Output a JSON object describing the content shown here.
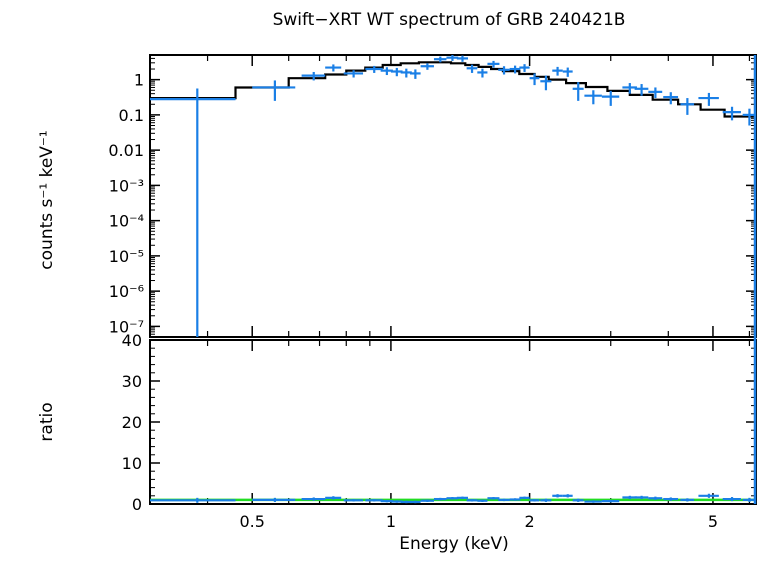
{
  "title": "Swift−XRT WT spectrum of GRB 240421B",
  "colors": {
    "data": "#1a7fe6",
    "model": "#000000",
    "unity": "#22dd22",
    "axes": "#000000"
  },
  "chart_data": [
    {
      "type": "scatter",
      "panel": "top",
      "ylabel": "counts s⁻¹ keV⁻¹",
      "xscale": "log",
      "yscale": "log",
      "xlim": [
        0.3,
        6.2
      ],
      "ylim": [
        5e-08,
        5
      ],
      "ytick_labels": [
        "1",
        "0.1",
        "0.01",
        "10⁻³",
        "10⁻⁴",
        "10⁻⁵",
        "10⁻⁶",
        "10⁻⁷"
      ],
      "ytick_values": [
        1,
        0.1,
        0.01,
        0.001,
        0.0001,
        1e-05,
        1e-06,
        1e-07
      ],
      "series": [
        {
          "kind": "data",
          "x": [
            0.38,
            0.56,
            0.68,
            0.75,
            0.83,
            0.92,
            0.98,
            1.03,
            1.08,
            1.13,
            1.2,
            1.28,
            1.36,
            1.43,
            1.5,
            1.58,
            1.67,
            1.76,
            1.86,
            1.95,
            2.05,
            2.17,
            2.3,
            2.42,
            2.55,
            2.75,
            3.0,
            3.3,
            3.5,
            3.75,
            4.05,
            4.4,
            4.9,
            5.5,
            6.0
          ],
          "xerr": [
            0.08,
            0.06,
            0.04,
            0.03,
            0.04,
            0.04,
            0.03,
            0.03,
            0.03,
            0.03,
            0.04,
            0.04,
            0.04,
            0.04,
            0.04,
            0.04,
            0.05,
            0.05,
            0.05,
            0.05,
            0.05,
            0.06,
            0.06,
            0.06,
            0.07,
            0.12,
            0.13,
            0.12,
            0.12,
            0.13,
            0.15,
            0.15,
            0.25,
            0.25,
            0.2
          ],
          "y": [
            0.28,
            0.6,
            1.3,
            2.2,
            1.5,
            2.0,
            1.8,
            1.7,
            1.6,
            1.5,
            2.4,
            3.8,
            4.2,
            4.0,
            2.1,
            1.6,
            2.8,
            1.9,
            2.0,
            2.2,
            1.1,
            0.9,
            1.8,
            1.7,
            0.55,
            0.35,
            0.33,
            0.6,
            0.55,
            0.45,
            0.32,
            0.2,
            0.3,
            0.12,
            0.1
          ],
          "yerr_low": [
            0.9999997,
            0.35,
            0.35,
            0.5,
            0.35,
            0.45,
            0.45,
            0.45,
            0.45,
            0.45,
            0.5,
            0.7,
            0.8,
            0.8,
            0.55,
            0.45,
            0.6,
            0.5,
            0.5,
            0.55,
            0.4,
            0.4,
            0.5,
            0.5,
            0.3,
            0.15,
            0.15,
            0.2,
            0.2,
            0.15,
            0.12,
            0.1,
            0.12,
            0.05,
            0.05
          ],
          "yerr_high": [
            0.28,
            0.35,
            0.35,
            0.5,
            0.35,
            0.45,
            0.45,
            0.45,
            0.45,
            0.45,
            0.5,
            0.7,
            0.8,
            0.8,
            0.55,
            0.45,
            0.6,
            0.5,
            0.5,
            0.55,
            0.4,
            0.4,
            0.5,
            0.5,
            0.3,
            0.15,
            0.15,
            0.2,
            0.2,
            0.15,
            0.12,
            0.1,
            0.12,
            0.05,
            0.05
          ]
        },
        {
          "kind": "model-step",
          "edges": [
            0.3,
            0.46,
            0.6,
            0.72,
            0.8,
            0.88,
            0.96,
            1.05,
            1.15,
            1.25,
            1.35,
            1.45,
            1.55,
            1.65,
            1.75,
            1.9,
            2.05,
            2.2,
            2.4,
            2.65,
            2.95,
            3.3,
            3.7,
            4.2,
            4.7,
            5.3,
            6.2
          ],
          "values": [
            0.3,
            0.6,
            1.1,
            1.4,
            1.8,
            2.2,
            2.6,
            2.9,
            3.1,
            3.1,
            2.9,
            2.6,
            2.3,
            2.0,
            1.75,
            1.45,
            1.2,
            1.0,
            0.8,
            0.62,
            0.48,
            0.37,
            0.27,
            0.2,
            0.14,
            0.09
          ]
        }
      ]
    },
    {
      "type": "scatter",
      "panel": "bottom",
      "xlabel": "Energy (keV)",
      "ylabel": "ratio",
      "xscale": "log",
      "xlim": [
        0.3,
        6.2
      ],
      "ylim": [
        0,
        40
      ],
      "ytick_labels": [
        "0",
        "10",
        "20",
        "30",
        "40"
      ],
      "ytick_values": [
        0,
        10,
        20,
        30,
        40
      ],
      "xtick_labels": [
        "0.5",
        "1",
        "2",
        "5"
      ],
      "xtick_values": [
        0.5,
        1,
        2,
        5
      ],
      "series": [
        {
          "kind": "data",
          "x": [
            0.38,
            0.56,
            0.68,
            0.75,
            0.83,
            0.92,
            0.98,
            1.03,
            1.08,
            1.13,
            1.2,
            1.28,
            1.36,
            1.43,
            1.5,
            1.58,
            1.67,
            1.76,
            1.86,
            1.95,
            2.05,
            2.17,
            2.3,
            2.42,
            2.55,
            2.75,
            3.0,
            3.3,
            3.5,
            3.75,
            4.05,
            4.4,
            4.9,
            5.5,
            6.0
          ],
          "xerr": [
            0.08,
            0.06,
            0.04,
            0.03,
            0.04,
            0.04,
            0.03,
            0.03,
            0.03,
            0.03,
            0.04,
            0.04,
            0.04,
            0.04,
            0.04,
            0.04,
            0.05,
            0.05,
            0.05,
            0.05,
            0.05,
            0.06,
            0.06,
            0.06,
            0.07,
            0.12,
            0.13,
            0.12,
            0.12,
            0.13,
            0.15,
            0.15,
            0.25,
            0.25,
            0.2
          ],
          "y": [
            0.9,
            1.0,
            1.2,
            1.5,
            0.9,
            0.9,
            0.7,
            0.6,
            0.5,
            0.5,
            0.8,
            1.2,
            1.4,
            1.5,
            0.9,
            0.8,
            1.4,
            1.0,
            1.1,
            1.5,
            0.9,
            0.9,
            2.0,
            2.0,
            0.9,
            0.6,
            0.7,
            1.6,
            1.6,
            1.4,
            1.2,
            1.0,
            2.0,
            1.2,
            1.0
          ],
          "yerr": [
            0.6,
            0.5,
            0.4,
            0.4,
            0.3,
            0.3,
            0.3,
            0.3,
            0.3,
            0.3,
            0.3,
            0.3,
            0.3,
            0.3,
            0.3,
            0.3,
            0.3,
            0.3,
            0.3,
            0.3,
            0.3,
            0.4,
            0.4,
            0.4,
            0.4,
            0.3,
            0.3,
            0.4,
            0.4,
            0.4,
            0.4,
            0.4,
            0.5,
            0.5,
            0.5
          ]
        },
        {
          "kind": "unity-line",
          "y": 1
        }
      ]
    }
  ]
}
